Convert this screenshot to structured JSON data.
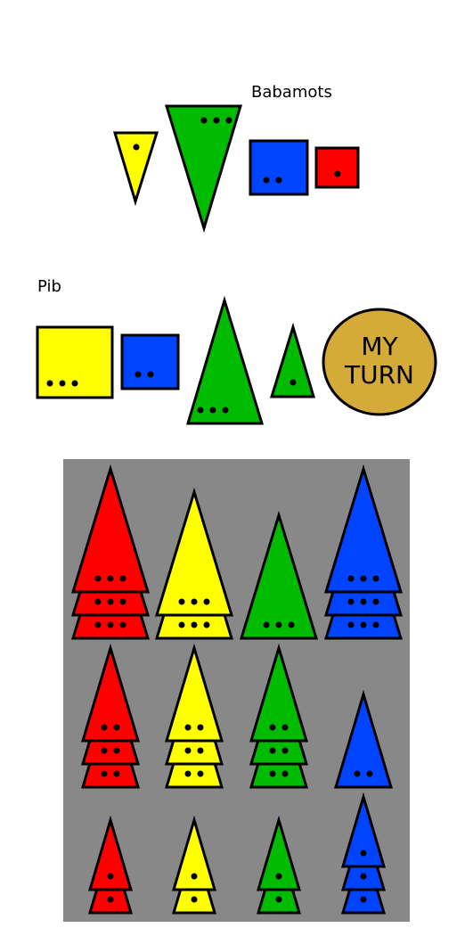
{
  "colors": {
    "red": "#ff0000",
    "yellow": "#ffff00",
    "green": "#00bb00",
    "blue": "#0044ff",
    "board": "#888888",
    "button": "#d4ab38"
  },
  "opponent": {
    "name": "Babamots",
    "pieces": [
      {
        "color": "yellow",
        "pips": 1,
        "shape": "triangle-down"
      },
      {
        "color": "green",
        "pips": 3,
        "shape": "triangle-down"
      },
      {
        "color": "blue",
        "pips": 2,
        "shape": "square"
      },
      {
        "color": "red",
        "pips": 1,
        "shape": "square"
      }
    ]
  },
  "player": {
    "name": "Pib",
    "pieces": [
      {
        "color": "yellow",
        "pips": 3,
        "shape": "square"
      },
      {
        "color": "blue",
        "pips": 2,
        "shape": "square"
      },
      {
        "color": "green",
        "pips": 3,
        "shape": "triangle-up"
      },
      {
        "color": "green",
        "pips": 1,
        "shape": "triangle-up"
      }
    ]
  },
  "turn_button": {
    "line1": "MY",
    "line2": "TURN"
  },
  "bank": {
    "columns": [
      "red",
      "yellow",
      "green",
      "blue"
    ],
    "rows": [
      {
        "size": 3,
        "counts": {
          "red": 3,
          "yellow": 2,
          "green": 1,
          "blue": 3
        }
      },
      {
        "size": 2,
        "counts": {
          "red": 3,
          "yellow": 3,
          "green": 3,
          "blue": 1
        }
      },
      {
        "size": 1,
        "counts": {
          "red": 2,
          "yellow": 2,
          "green": 2,
          "blue": 3
        }
      }
    ]
  }
}
